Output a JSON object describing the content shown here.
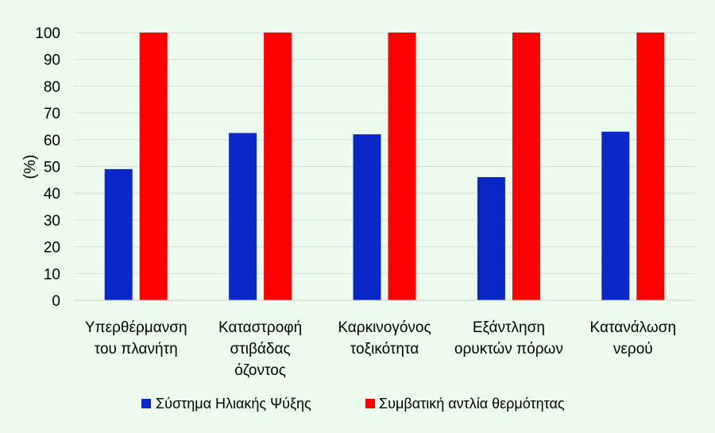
{
  "chart_data": {
    "type": "bar",
    "title": "",
    "xlabel": "",
    "ylabel": "(%)",
    "ylim": [
      0,
      100
    ],
    "yticks": [
      0,
      10,
      20,
      30,
      40,
      50,
      60,
      70,
      80,
      90,
      100
    ],
    "grid": true,
    "legend_position": "bottom",
    "categories": [
      [
        "Υπερθέρμανση",
        "του πλανήτη"
      ],
      [
        "Καταστροφή",
        "στιβάδας",
        "όζοντος"
      ],
      [
        "Καρκινογόνος",
        "τοξικότητα"
      ],
      [
        "Εξάντληση",
        "ορυκτών πόρων"
      ],
      [
        "Κατανάλωση",
        "νερού"
      ]
    ],
    "series": [
      {
        "name": "Σύστημα Ηλιακής Ψύξης",
        "color": "#0a28c8",
        "values": [
          49,
          62.5,
          62,
          46,
          63
        ]
      },
      {
        "name": "Συμβατική αντλία θερμότητας",
        "color": "#ff0000",
        "values": [
          100,
          100,
          100,
          100,
          100
        ]
      }
    ]
  }
}
